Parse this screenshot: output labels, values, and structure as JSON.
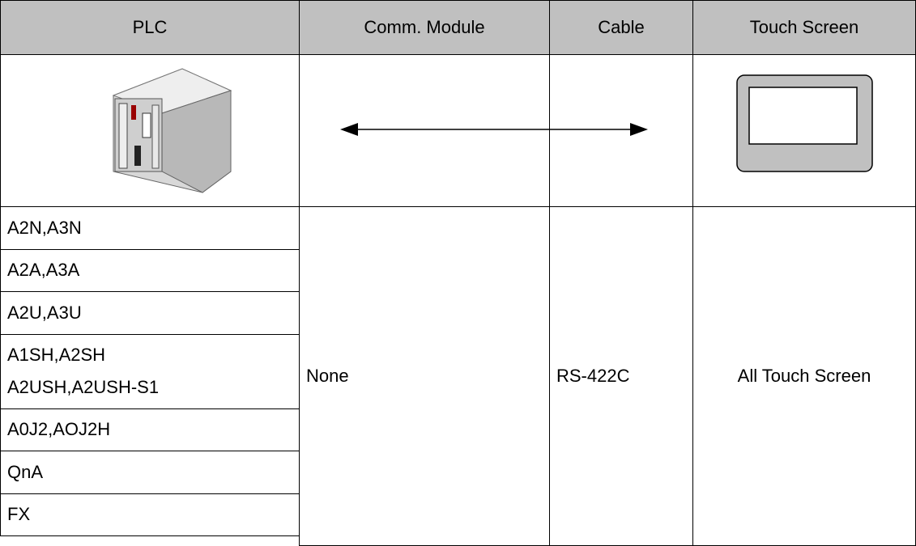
{
  "table": {
    "header": [
      "PLC",
      "Comm. Module",
      "Cable",
      "Touch Screen"
    ],
    "plc_models": [
      [
        "A2N,A3N"
      ],
      [
        "A2A,A3A"
      ],
      [
        "A2U,A3U"
      ],
      [
        "A1SH,A2SH",
        "A2USH,A2USH-S1"
      ],
      [
        "A0J2,AOJ2H"
      ],
      [
        "QnA"
      ],
      [
        "FX"
      ]
    ],
    "comm_module": "None",
    "cable": "RS-422C",
    "touch_screen": "All Touch Screen"
  }
}
